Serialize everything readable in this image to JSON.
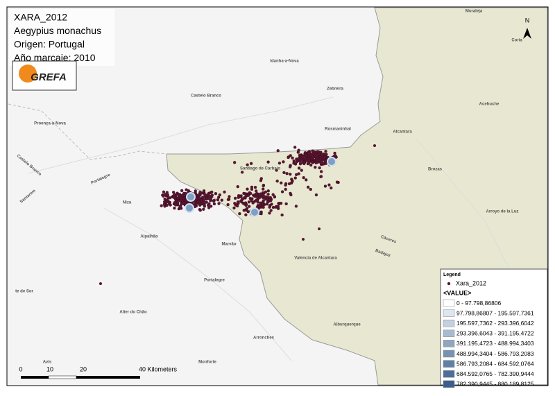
{
  "info": {
    "lines": [
      "XARA_2012",
      "Aegypius monachus",
      "Origen: Portugal",
      "Año marcaje: 2010"
    ]
  },
  "logo": {
    "text": "GREFA"
  },
  "north": {
    "label": "N"
  },
  "places": [
    "Moraleja",
    "Coria",
    "Idanha-a-Nova",
    "Castelo Branco",
    "Zebreira",
    "Acehuche",
    "Proença-a-Nova",
    "Rosmaninhal",
    "Alcantara",
    "Brozas",
    "Castelo Branco",
    "Santarem",
    "Portalegre",
    "Niza",
    "Arroyo de la Luz",
    "Alpalhão",
    "Marvão",
    "Cáceres",
    "Badajoz",
    "Valencia de Alcantara",
    "Portalegre",
    "te de Sor",
    "Alburquerque",
    "Alter do Chão",
    "Avis",
    "Arronches",
    "Monforte",
    "Santiago de Carbajo"
  ],
  "scale": {
    "labels": [
      "0",
      "10",
      "20",
      "40 Kilometers"
    ]
  },
  "legend": {
    "title": "Legend",
    "layer": "Xara_2012",
    "field": "<VALUE>",
    "classes": [
      {
        "label": "0 - 97.798,86806",
        "color": "#ffffff"
      },
      {
        "label": "97.798,86807 - 195.597,7361",
        "color": "#dde6ef"
      },
      {
        "label": "195.597,7362 - 293.396,6042",
        "color": "#c2d0df"
      },
      {
        "label": "293.396,6043 - 391.195,4722",
        "color": "#a7bbd0"
      },
      {
        "label": "391.195,4723 - 488.994,3403",
        "color": "#8ea7c1"
      },
      {
        "label": "488.994,3404 - 586.793,2083",
        "color": "#7793b3"
      },
      {
        "label": "586.793,2084 - 684.592,0764",
        "color": "#6180a6"
      },
      {
        "label": "684.592,0765 - 782.390,9444",
        "color": "#4d6e99"
      },
      {
        "label": "782.390,9445 - 880.189,8125",
        "color": "#3b5e8d"
      }
    ]
  }
}
